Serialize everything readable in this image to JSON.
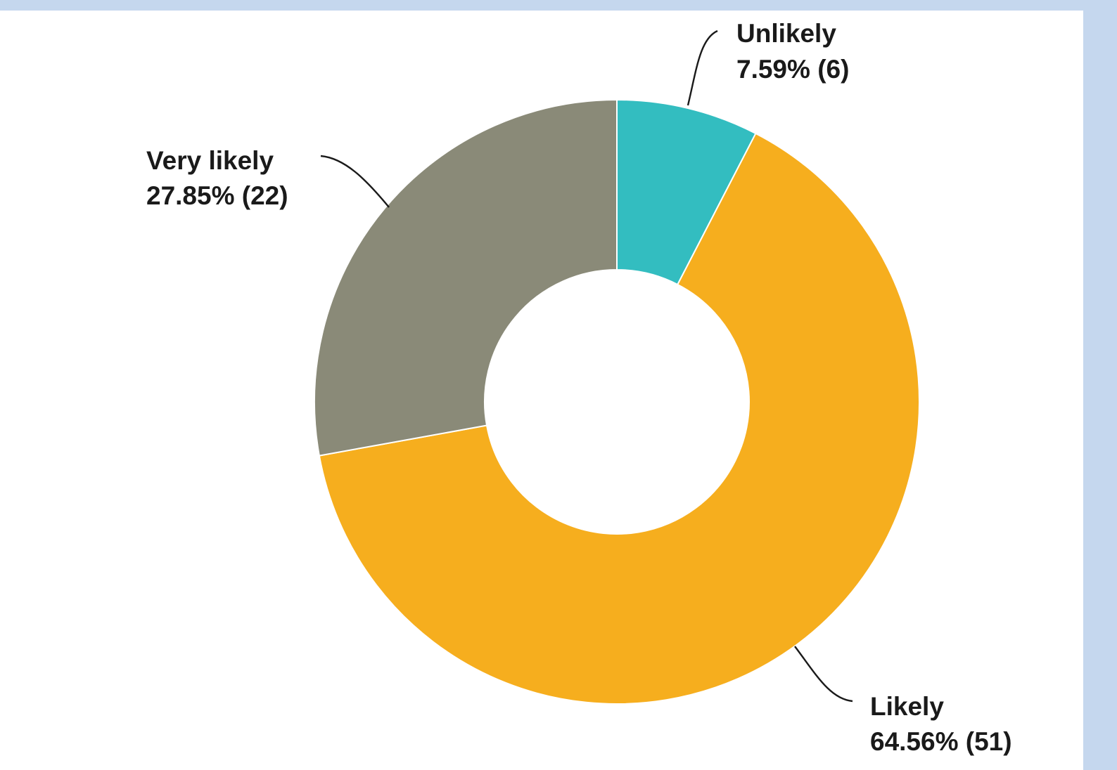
{
  "chart_data": {
    "type": "pie",
    "donut": true,
    "title": "",
    "slices": [
      {
        "label": "Unlikely",
        "percent": 7.59,
        "count": 6,
        "percent_text": "7.59% (6)",
        "color": "#33bdc0"
      },
      {
        "label": "Likely",
        "percent": 64.56,
        "count": 51,
        "percent_text": "64.56% (51)",
        "color": "#f6ae1e"
      },
      {
        "label": "Very likely",
        "percent": 27.85,
        "count": 22,
        "percent_text": "27.85% (22)",
        "color": "#8a8a78"
      }
    ],
    "start_angle": "top",
    "direction": "clockwise"
  }
}
